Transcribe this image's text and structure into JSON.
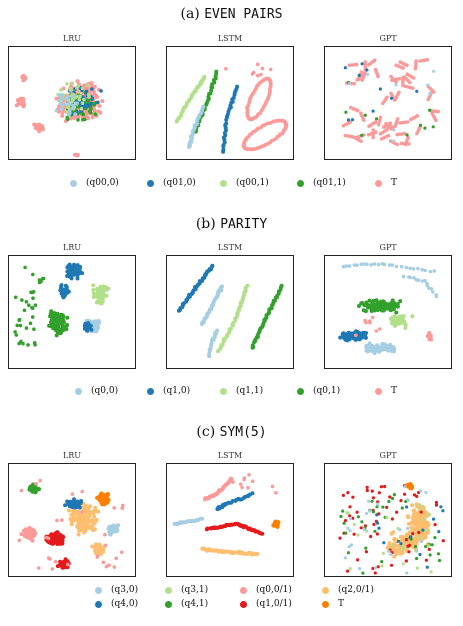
{
  "chart_data": [
    {
      "type": "scatter",
      "title_prefix": "(a)",
      "title_name": "EVEN PAIRS",
      "panels": [
        "LRU",
        "LSTM",
        "GPT"
      ],
      "legend": [
        {
          "label": "(q00,0)",
          "color": "#a6cee3"
        },
        {
          "label": "(q01,0)",
          "color": "#1f78b4"
        },
        {
          "label": "(q00,1)",
          "color": "#b2df8a"
        },
        {
          "label": "(q01,1)",
          "color": "#33a02c"
        },
        {
          "label": "T",
          "color": "#fb9a99"
        }
      ]
    },
    {
      "type": "scatter",
      "title_prefix": "(b)",
      "title_name": "PARITY",
      "panels": [
        "LRU",
        "LSTM",
        "GPT"
      ],
      "legend": [
        {
          "label": "(q0,0)",
          "color": "#a6cee3"
        },
        {
          "label": "(q1,0)",
          "color": "#1f78b4"
        },
        {
          "label": "(q1,1)",
          "color": "#b2df8a"
        },
        {
          "label": "(q0,1)",
          "color": "#33a02c"
        },
        {
          "label": "T",
          "color": "#fb9a99"
        }
      ]
    },
    {
      "type": "scatter",
      "title_prefix": "(c)",
      "title_name": "SYM(5)",
      "panels": [
        "LRU",
        "LSTM",
        "GPT"
      ],
      "legend": [
        {
          "label": "(q3,0)",
          "color": "#a6cee3"
        },
        {
          "label": "(q3,1)",
          "color": "#b2df8a"
        },
        {
          "label": "(q0,0/1)",
          "color": "#fb9a99"
        },
        {
          "label": "(q2,0/1)",
          "color": "#fdbf6f"
        },
        {
          "label": "(q4,0)",
          "color": "#1f78b4"
        },
        {
          "label": "(q4,1)",
          "color": "#33a02c"
        },
        {
          "label": "(q1,0/1)",
          "color": "#e31a1c"
        },
        {
          "label": "T",
          "color": "#ff7f00"
        }
      ]
    }
  ]
}
